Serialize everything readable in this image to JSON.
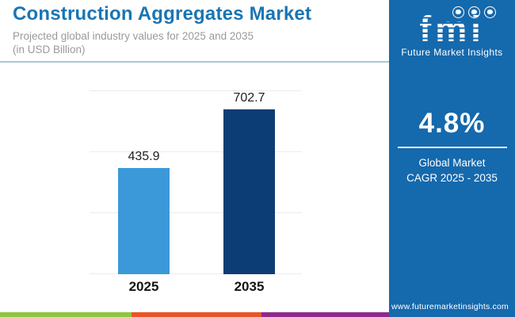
{
  "header": {
    "title": "Construction Aggregates Market",
    "subtitle_line1": "Projected global industry values for 2025 and 2035",
    "subtitle_line2": "(in USD Billion)"
  },
  "chart_data": {
    "type": "bar",
    "categories": [
      "2025",
      "2035"
    ],
    "values": [
      435.9,
      702.7
    ],
    "title": "Construction Aggregates Market",
    "xlabel": "",
    "ylabel": "USD Billion",
    "ylim": [
      0,
      750
    ],
    "gridline_values": [
      0,
      250,
      500,
      750
    ],
    "grid": "horizontal-only",
    "legend_position": "none",
    "bar_colors": [
      "#3b99d9",
      "#0c3d75"
    ],
    "data_labels_shown": true
  },
  "sidebar": {
    "bg_color": "#1569ad",
    "logo": {
      "brand": "fmi",
      "caption": "Future Market Insights",
      "icons": [
        "map-globe-icon",
        "compass-globe-icon",
        "globe-icon"
      ]
    },
    "stat_value": "4.8%",
    "stat_label_line1": "Global Market",
    "stat_label_line2": "CAGR 2025 - 2035",
    "website": "www.futuremarketinsights.com"
  },
  "footer_stripe_colors": [
    "#8dc63f",
    "#e8542a",
    "#8e2a8b"
  ],
  "colors": {
    "title_accent": "#1a75b3",
    "subtitle_gray": "#9a9a9a",
    "header_rule": "#a9c6d6",
    "gridline": "#ececec",
    "axis_label_text": "#151515"
  }
}
